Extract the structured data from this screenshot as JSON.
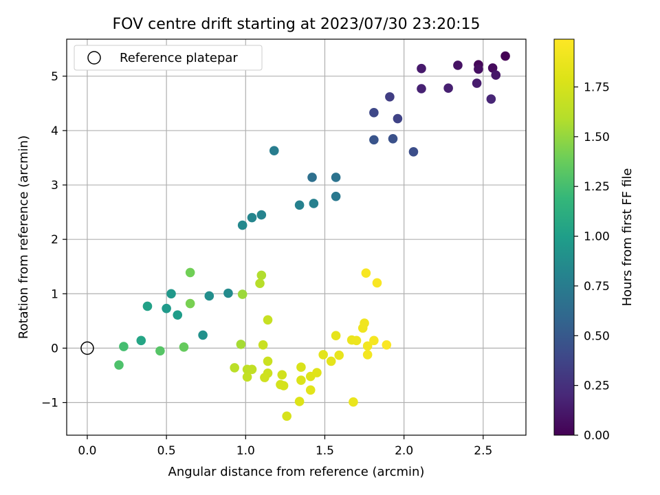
{
  "chart_data": {
    "type": "scatter",
    "title": "FOV centre drift starting at 2023/07/30 23:20:15",
    "xlabel": "Angular distance from reference (arcmin)",
    "ylabel": "Rotation from reference (arcmin)",
    "xlim": [
      -0.13,
      2.77
    ],
    "ylim": [
      -1.6,
      5.68
    ],
    "x_ticks": [
      0.0,
      0.5,
      1.0,
      1.5,
      2.0,
      2.5
    ],
    "x_tick_labels": [
      "0.0",
      "0.5",
      "1.0",
      "1.5",
      "2.0",
      "2.5"
    ],
    "y_ticks": [
      -1,
      0,
      1,
      2,
      3,
      4,
      5
    ],
    "y_tick_labels": [
      "−1",
      "0",
      "1",
      "2",
      "3",
      "4",
      "5"
    ],
    "grid": true,
    "legend": {
      "position": "top-left",
      "entries": [
        "Reference platepar"
      ]
    },
    "reference_point": {
      "label": "Reference platepar",
      "x": 0.0,
      "y": 0.0,
      "marker": "open-circle"
    },
    "colorbar": {
      "label": "Hours from first FF file",
      "colormap": "viridis",
      "range": [
        0.0,
        1.99
      ],
      "ticks": [
        0.0,
        0.25,
        0.5,
        0.75,
        1.0,
        1.25,
        1.5,
        1.75
      ],
      "tick_labels": [
        "0.00",
        "0.25",
        "0.50",
        "0.75",
        "1.00",
        "1.25",
        "1.50",
        "1.75"
      ]
    },
    "points": [
      {
        "x": 2.64,
        "y": 5.37,
        "c": 0.0
      },
      {
        "x": 2.47,
        "y": 5.21,
        "c": 0.03
      },
      {
        "x": 2.56,
        "y": 5.15,
        "c": 0.05
      },
      {
        "x": 2.47,
        "y": 5.13,
        "c": 0.07
      },
      {
        "x": 2.34,
        "y": 5.2,
        "c": 0.09
      },
      {
        "x": 2.58,
        "y": 5.02,
        "c": 0.11
      },
      {
        "x": 2.11,
        "y": 5.14,
        "c": 0.13
      },
      {
        "x": 2.46,
        "y": 4.87,
        "c": 0.14
      },
      {
        "x": 2.28,
        "y": 4.78,
        "c": 0.16
      },
      {
        "x": 2.11,
        "y": 4.77,
        "c": 0.17
      },
      {
        "x": 2.55,
        "y": 4.58,
        "c": 0.19
      },
      {
        "x": 1.91,
        "y": 4.62,
        "c": 0.33
      },
      {
        "x": 1.96,
        "y": 4.22,
        "c": 0.36
      },
      {
        "x": 1.81,
        "y": 4.33,
        "c": 0.39
      },
      {
        "x": 2.06,
        "y": 3.61,
        "c": 0.43
      },
      {
        "x": 1.93,
        "y": 3.85,
        "c": 0.45
      },
      {
        "x": 1.81,
        "y": 3.83,
        "c": 0.47
      },
      {
        "x": 1.42,
        "y": 3.14,
        "c": 0.66
      },
      {
        "x": 1.57,
        "y": 3.14,
        "c": 0.68
      },
      {
        "x": 1.57,
        "y": 2.79,
        "c": 0.72
      },
      {
        "x": 1.18,
        "y": 3.63,
        "c": 0.76
      },
      {
        "x": 1.43,
        "y": 2.66,
        "c": 0.78
      },
      {
        "x": 1.34,
        "y": 2.63,
        "c": 0.79
      },
      {
        "x": 1.1,
        "y": 2.45,
        "c": 0.8
      },
      {
        "x": 1.04,
        "y": 2.4,
        "c": 0.82
      },
      {
        "x": 0.98,
        "y": 2.26,
        "c": 0.84
      },
      {
        "x": 0.89,
        "y": 1.01,
        "c": 0.86
      },
      {
        "x": 0.77,
        "y": 0.96,
        "c": 0.88
      },
      {
        "x": 0.73,
        "y": 0.24,
        "c": 0.9
      },
      {
        "x": 0.53,
        "y": 1.0,
        "c": 0.95
      },
      {
        "x": 0.5,
        "y": 0.73,
        "c": 0.97
      },
      {
        "x": 0.57,
        "y": 0.61,
        "c": 0.99
      },
      {
        "x": 0.38,
        "y": 0.77,
        "c": 1.02
      },
      {
        "x": 0.34,
        "y": 0.14,
        "c": 1.05
      },
      {
        "x": 0.23,
        "y": 0.03,
        "c": 1.25
      },
      {
        "x": 0.2,
        "y": -0.31,
        "c": 1.28
      },
      {
        "x": 0.46,
        "y": -0.05,
        "c": 1.31
      },
      {
        "x": 0.61,
        "y": 0.02,
        "c": 1.36
      },
      {
        "x": 0.65,
        "y": 1.39,
        "c": 1.4
      },
      {
        "x": 0.65,
        "y": 0.82,
        "c": 1.42
      },
      {
        "x": 0.98,
        "y": 0.99,
        "c": 1.52
      },
      {
        "x": 0.97,
        "y": 0.07,
        "c": 1.55
      },
      {
        "x": 1.1,
        "y": 1.34,
        "c": 1.58
      },
      {
        "x": 1.09,
        "y": 1.19,
        "c": 1.6
      },
      {
        "x": 0.93,
        "y": -0.36,
        "c": 1.62
      },
      {
        "x": 1.01,
        "y": -0.39,
        "c": 1.64
      },
      {
        "x": 1.04,
        "y": -0.39,
        "c": 1.65
      },
      {
        "x": 1.01,
        "y": -0.53,
        "c": 1.66
      },
      {
        "x": 1.14,
        "y": 0.52,
        "c": 1.68
      },
      {
        "x": 1.11,
        "y": 0.06,
        "c": 1.69
      },
      {
        "x": 1.14,
        "y": -0.24,
        "c": 1.7
      },
      {
        "x": 1.14,
        "y": -0.46,
        "c": 1.71
      },
      {
        "x": 1.12,
        "y": -0.54,
        "c": 1.72
      },
      {
        "x": 1.23,
        "y": -0.49,
        "c": 1.73
      },
      {
        "x": 1.22,
        "y": -0.67,
        "c": 1.74
      },
      {
        "x": 1.24,
        "y": -0.69,
        "c": 1.75
      },
      {
        "x": 1.26,
        "y": -1.25,
        "c": 1.76
      },
      {
        "x": 1.35,
        "y": -0.35,
        "c": 1.77
      },
      {
        "x": 1.35,
        "y": -0.59,
        "c": 1.78
      },
      {
        "x": 1.34,
        "y": -0.98,
        "c": 1.79
      },
      {
        "x": 1.41,
        "y": -0.52,
        "c": 1.8
      },
      {
        "x": 1.45,
        "y": -0.45,
        "c": 1.81
      },
      {
        "x": 1.41,
        "y": -0.77,
        "c": 1.82
      },
      {
        "x": 1.49,
        "y": -0.12,
        "c": 1.83
      },
      {
        "x": 1.54,
        "y": -0.24,
        "c": 1.84
      },
      {
        "x": 1.57,
        "y": 0.23,
        "c": 1.85
      },
      {
        "x": 1.59,
        "y": -0.13,
        "c": 1.86
      },
      {
        "x": 1.68,
        "y": -0.99,
        "c": 1.87
      },
      {
        "x": 1.67,
        "y": 0.15,
        "c": 1.88
      },
      {
        "x": 1.7,
        "y": 0.14,
        "c": 1.89
      },
      {
        "x": 1.74,
        "y": 0.37,
        "c": 1.9
      },
      {
        "x": 1.75,
        "y": 0.46,
        "c": 1.91
      },
      {
        "x": 1.77,
        "y": 0.04,
        "c": 1.92
      },
      {
        "x": 1.77,
        "y": -0.12,
        "c": 1.93
      },
      {
        "x": 1.81,
        "y": 0.14,
        "c": 1.94
      },
      {
        "x": 1.76,
        "y": 1.38,
        "c": 1.95
      },
      {
        "x": 1.83,
        "y": 1.2,
        "c": 1.96
      },
      {
        "x": 1.89,
        "y": 0.06,
        "c": 1.97
      }
    ]
  }
}
